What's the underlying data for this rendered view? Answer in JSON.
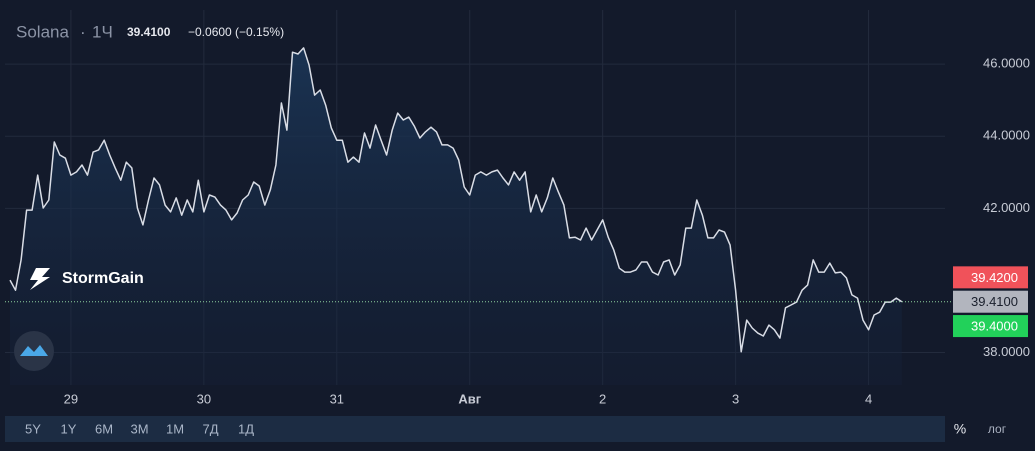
{
  "header": {
    "symbol": "Solana",
    "interval": "1Ч",
    "price": "39.4100",
    "change": "−0.0600 (−0.15%)"
  },
  "brand": "StormGain",
  "toolbar": {
    "ranges": [
      "5Y",
      "1Y",
      "6M",
      "3M",
      "1M",
      "7Д",
      "1Д"
    ],
    "percent": "%",
    "log": "лог"
  },
  "chart_data": {
    "type": "area",
    "series": [
      {
        "color": "#d9dde6",
        "values": [
          40.01,
          39.73,
          40.57,
          41.95,
          41.95,
          42.92,
          42.01,
          42.23,
          43.84,
          43.48,
          43.39,
          42.92,
          43.01,
          43.2,
          42.92,
          43.56,
          43.62,
          43.89,
          43.48,
          43.12,
          42.78,
          43.28,
          43.12,
          42.01,
          41.54,
          42.23,
          42.84,
          42.65,
          42.09,
          41.9,
          42.29,
          41.81,
          42.23,
          41.9,
          42.78,
          41.9,
          42.37,
          42.31,
          42.09,
          41.95,
          41.68,
          41.87,
          42.23,
          42.37,
          42.73,
          42.62,
          42.09,
          42.51,
          43.2,
          44.92,
          44.17,
          46.33,
          46.28,
          46.45,
          45.97,
          45.14,
          45.28,
          44.86,
          44.23,
          43.89,
          43.89,
          43.28,
          43.42,
          43.28,
          44.09,
          43.67,
          44.31,
          43.89,
          43.48,
          44.17,
          44.64,
          44.45,
          44.53,
          44.28,
          43.95,
          44.12,
          44.25,
          44.12,
          43.76,
          43.76,
          43.67,
          43.34,
          42.59,
          42.37,
          42.92,
          43.01,
          42.92,
          43.01,
          43.06,
          42.84,
          42.65,
          43.01,
          42.78,
          43.01,
          41.9,
          42.37,
          41.9,
          42.29,
          42.84,
          42.45,
          42.09,
          41.18,
          41.2,
          41.12,
          41.45,
          41.12,
          41.4,
          41.68,
          41.2,
          40.84,
          40.34,
          40.23,
          40.23,
          40.29,
          40.51,
          40.51,
          40.23,
          40.15,
          40.51,
          40.57,
          40.15,
          40.43,
          41.45,
          41.45,
          42.23,
          41.81,
          41.18,
          41.18,
          41.4,
          41.34,
          40.98,
          39.73,
          38.02,
          38.9,
          38.68,
          38.54,
          38.46,
          38.76,
          38.63,
          38.4,
          39.24,
          39.32,
          39.4,
          39.73,
          39.87,
          40.57,
          40.23,
          40.23,
          40.48,
          40.21,
          40.23,
          40.07,
          39.6,
          39.51,
          38.9,
          38.63,
          39.04,
          39.12,
          39.4,
          39.4,
          39.51,
          39.41
        ]
      }
    ],
    "xlim": [
      -0.9,
      168.8
    ],
    "xticks": [
      {
        "value": 11,
        "label": "29"
      },
      {
        "value": 35,
        "label": "30"
      },
      {
        "value": 59,
        "label": "31"
      },
      {
        "value": 83,
        "label": "Авг"
      },
      {
        "value": 107,
        "label": "2"
      },
      {
        "value": 131,
        "label": "3"
      },
      {
        "value": 155,
        "label": "4"
      }
    ],
    "ylim": [
      37.1,
      47.5
    ],
    "yticks": [
      {
        "value": 38,
        "label": "38.0000"
      },
      {
        "value": 42,
        "label": "42.0000"
      },
      {
        "value": 44,
        "label": "44.0000"
      },
      {
        "value": 46,
        "label": "46.0000"
      }
    ],
    "grid": true,
    "price_markers": [
      {
        "value": 39.42,
        "label": "39.4200",
        "color": "#f0525a"
      },
      {
        "value": 39.41,
        "label": "39.4100",
        "color": "#b2b5be"
      },
      {
        "value": 39.4,
        "label": "39.4000",
        "color": "#22d15a"
      }
    ]
  }
}
